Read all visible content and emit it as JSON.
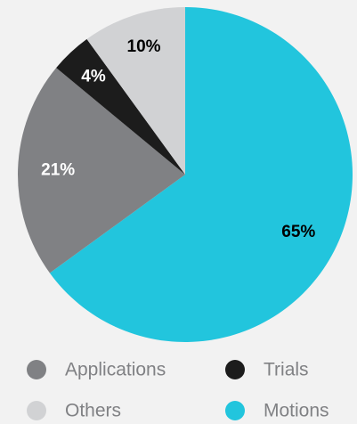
{
  "chart_data": {
    "type": "pie",
    "categories": [
      "Motions",
      "Applications",
      "Trials",
      "Others"
    ],
    "values": [
      65,
      21,
      4,
      10
    ],
    "value_labels": [
      "65%",
      "21%",
      "4%",
      "10%"
    ],
    "colors": [
      "#22c5dd",
      "#808184",
      "#1c1c1c",
      "#d1d2d4"
    ],
    "start_angle": 0,
    "direction": "clockwise",
    "legend_order": [
      1,
      2,
      3,
      0
    ]
  }
}
